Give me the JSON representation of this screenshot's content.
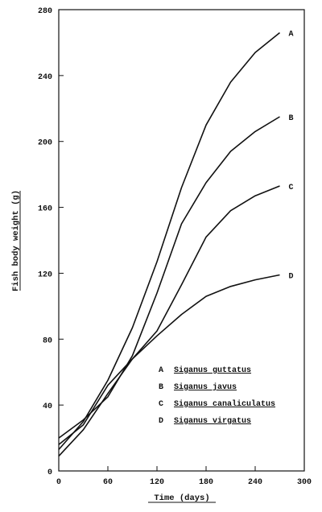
{
  "chart_data": {
    "type": "line",
    "title": "",
    "xlabel": "Time (days)",
    "ylabel": "Fish body weight (g)",
    "xlim": [
      0,
      300
    ],
    "ylim": [
      0,
      280
    ],
    "xticks": [
      "0",
      "60",
      "120",
      "180",
      "240",
      "300"
    ],
    "yticks": [
      "0",
      "40",
      "80",
      "120",
      "160",
      "200",
      "240",
      "280"
    ],
    "grid": false,
    "legend_position": "lower-right inside",
    "series": [
      {
        "key": "A",
        "name": "Siganus guttatus",
        "x": [
          0,
          30,
          60,
          90,
          120,
          150,
          180,
          210,
          240,
          270
        ],
        "y": [
          13,
          30,
          55,
          87,
          127,
          172,
          210,
          236,
          254,
          266
        ]
      },
      {
        "key": "B",
        "name": "Siganus javus",
        "x": [
          0,
          30,
          60,
          90,
          120,
          150,
          180,
          210,
          240,
          270
        ],
        "y": [
          20,
          31,
          45,
          70,
          108,
          150,
          175,
          194,
          206,
          215
        ]
      },
      {
        "key": "C",
        "name": "Siganus canaliculatus",
        "x": [
          0,
          30,
          60,
          90,
          120,
          150,
          180,
          210,
          240,
          270
        ],
        "y": [
          16,
          28,
          52,
          68,
          85,
          113,
          142,
          158,
          167,
          173
        ]
      },
      {
        "key": "D",
        "name": "Siganus virgatus",
        "x": [
          0,
          30,
          60,
          90,
          120,
          150,
          180,
          210,
          240,
          270
        ],
        "y": [
          9,
          25,
          47,
          68,
          82,
          95,
          106,
          112,
          116,
          119
        ]
      }
    ]
  }
}
